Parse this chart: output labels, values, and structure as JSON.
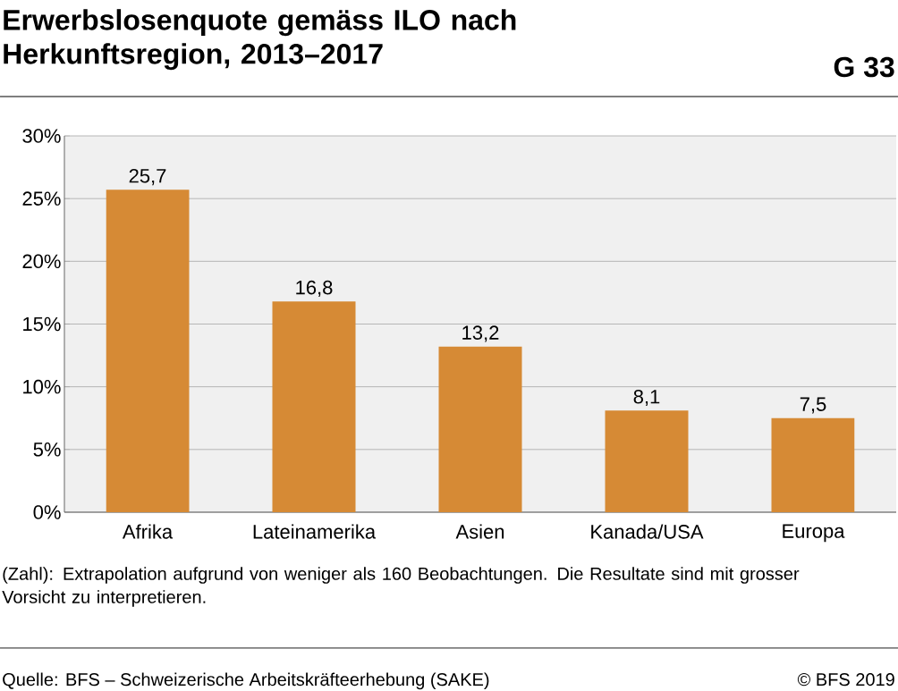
{
  "chart_data": {
    "type": "bar",
    "title": "Erwerbslosenquote gemäss ILO nach Herkunftsregion, 2013–2017",
    "annotations": [
      "G 33",
      "(Zahl): Extrapolation aufgrund von weniger als 160 Beobachtungen. Die Resultate sind mit grosser Vorsicht zu interpretieren.",
      "Quelle: BFS – Schweizerische Arbeitskräfteerhebung (SAKE)",
      "© BFS 2019"
    ],
    "categories": [
      "Afrika",
      "Lateinamerika",
      "Asien",
      "Kanada/USA",
      "Europa"
    ],
    "values": [
      25.7,
      16.8,
      13.2,
      8.1,
      7.5
    ],
    "value_labels": [
      "25,7",
      "16,8",
      "13,2",
      "8,1",
      "7,5"
    ],
    "color": "#d68a35",
    "ylim": [
      0,
      30
    ],
    "yticks": [
      {
        "value": 0,
        "label": "0%"
      },
      {
        "value": 5,
        "label": "5%"
      },
      {
        "value": 10,
        "label": "10%"
      },
      {
        "value": 15,
        "label": "15%"
      },
      {
        "value": 20,
        "label": "20%"
      },
      {
        "value": 25,
        "label": "25%"
      },
      {
        "value": 30,
        "label": "30%"
      }
    ],
    "grid": "y"
  }
}
